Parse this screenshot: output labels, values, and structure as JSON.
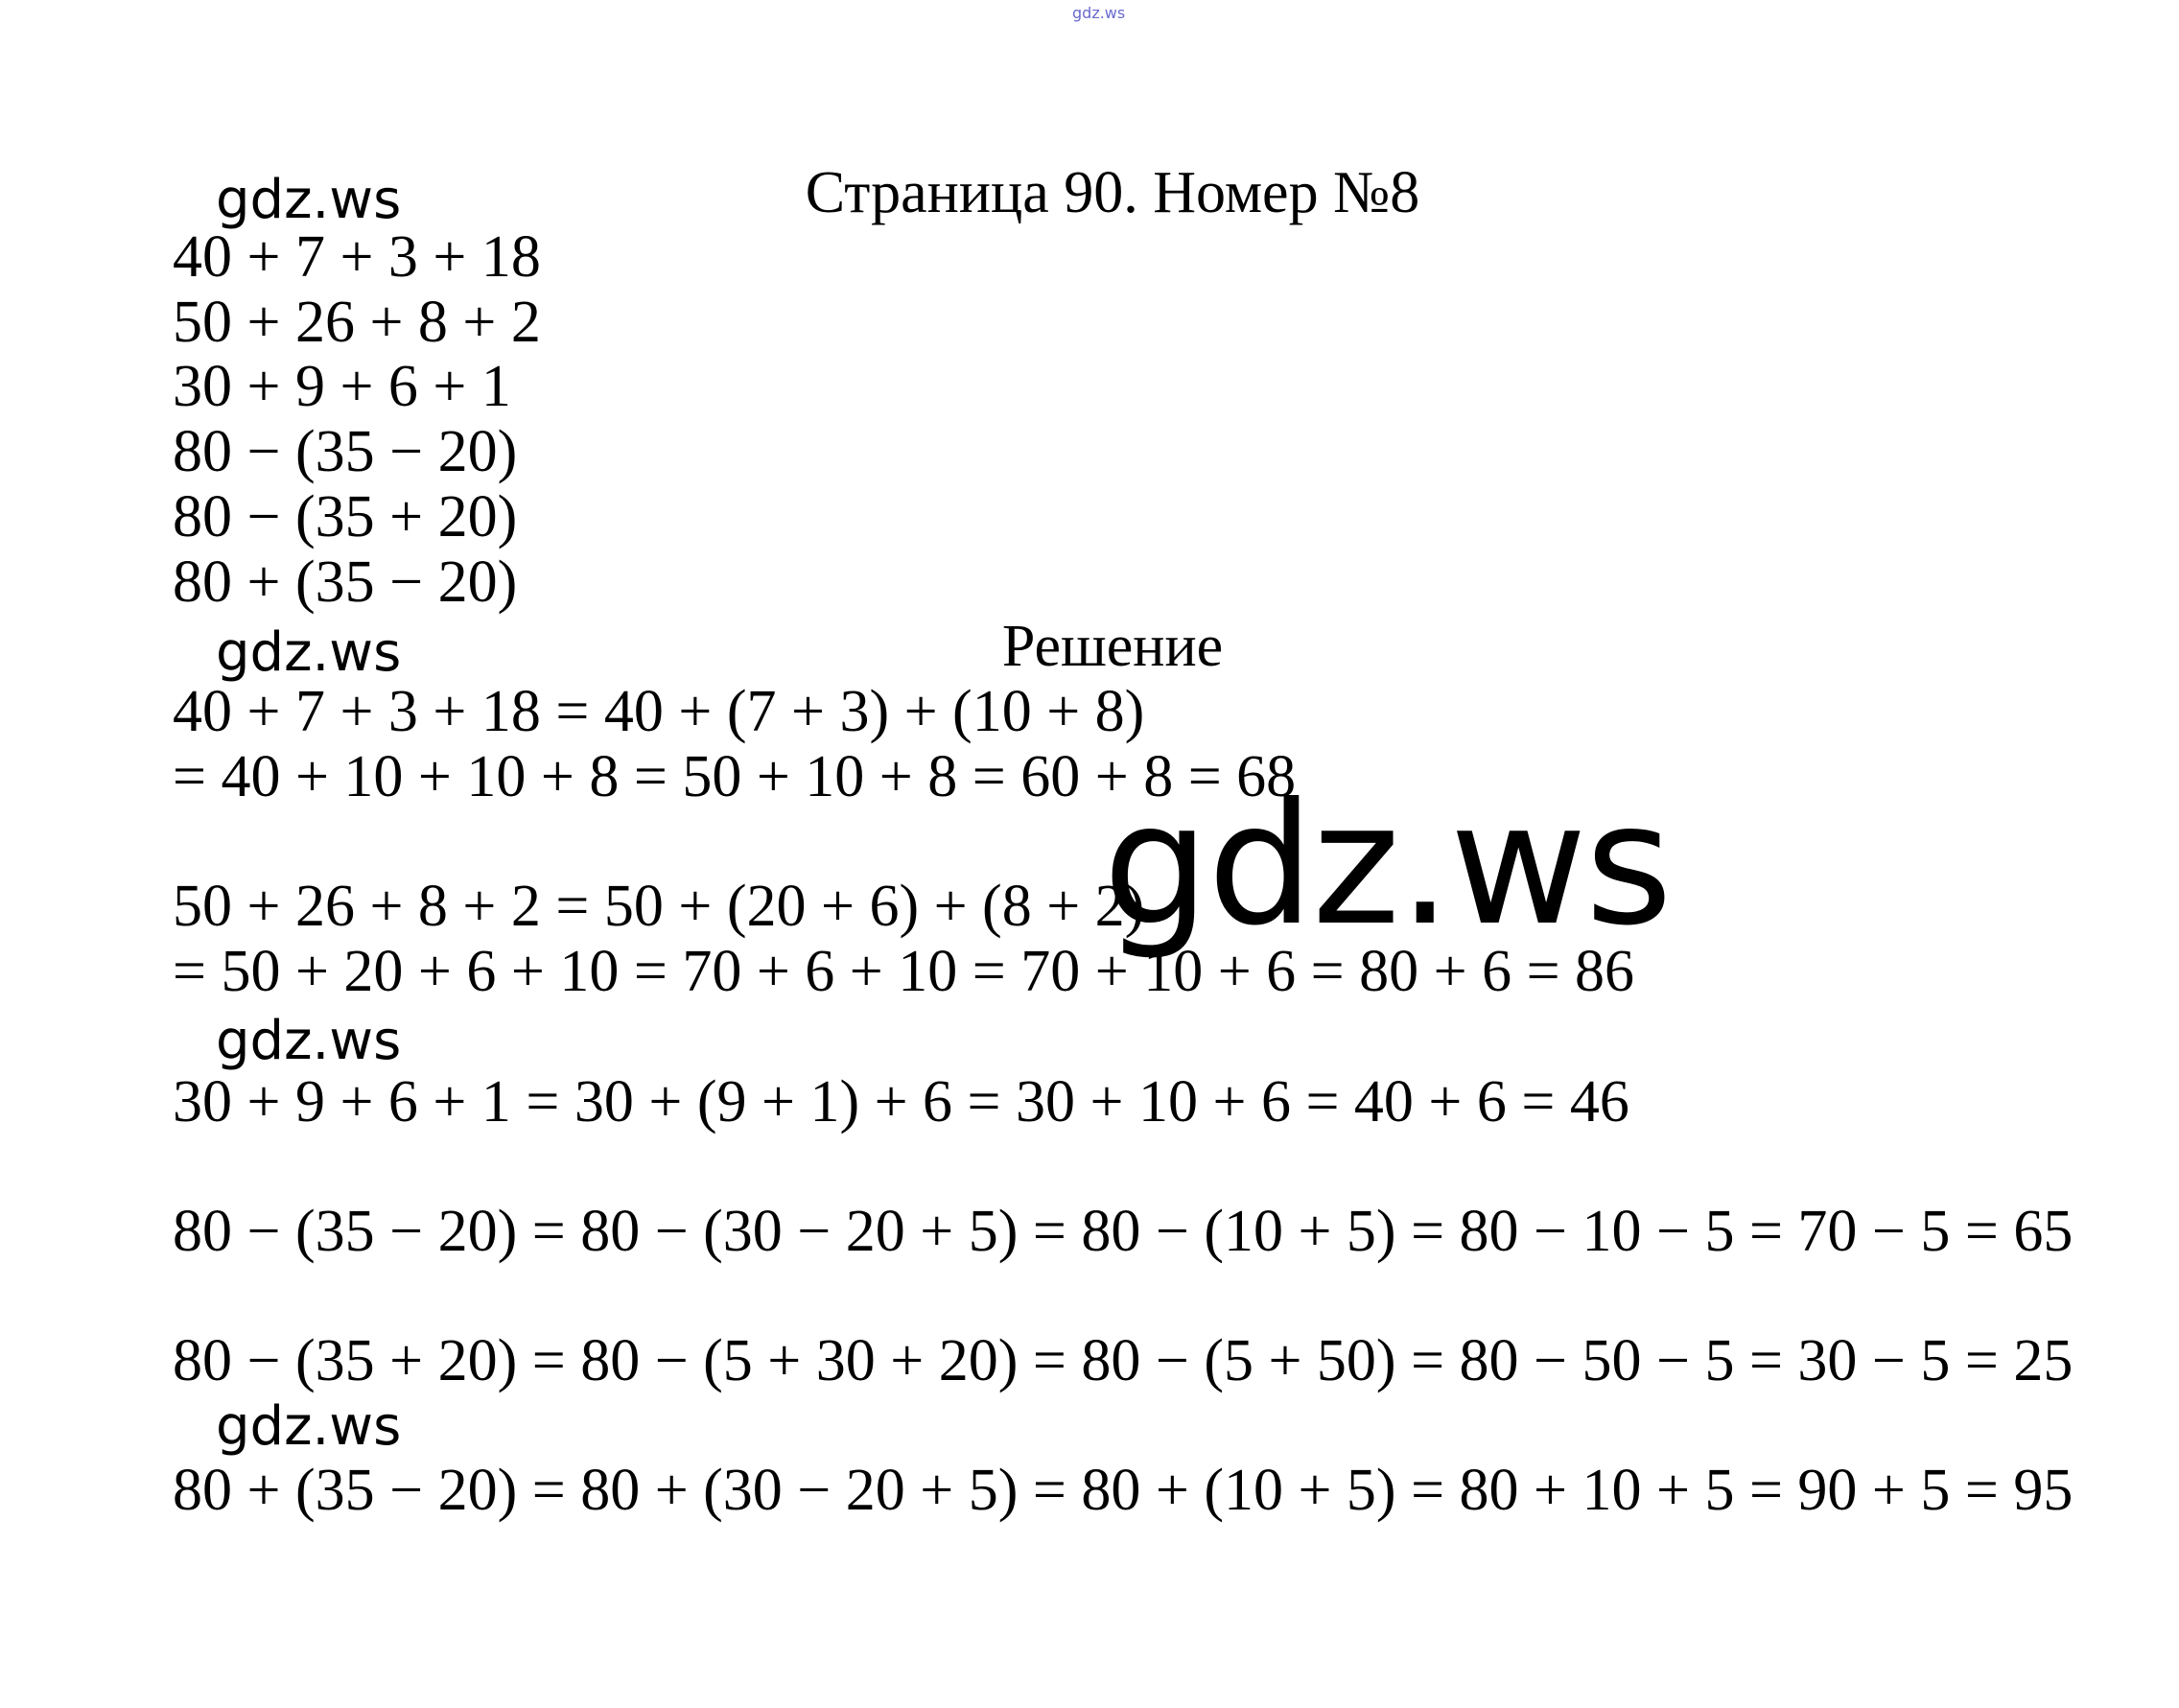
{
  "watermark_top": "gdz.ws",
  "watermark_text": "gdz.ws",
  "title": "Страница 90. Номер №8",
  "task_lines": [
    "40 + 7 + 3 + 18",
    "50 + 26 + 8 + 2",
    "30 + 9 + 6 + 1",
    "80 − (35 − 20)",
    "80 − (35 + 20)",
    "80 + (35 − 20)"
  ],
  "solution_heading": "Решение",
  "solution_lines": [
    "40 + 7 + 3 + 18 = 40 + (7 + 3) + (10 + 8)",
    "= 40 + 10 + 10 + 8 = 50 + 10 + 8 = 60 + 8 = 68",
    "50 + 26 + 8 + 2 = 50 + (20 + 6) + (8 + 2)",
    "= 50 + 20 + 6 + 10 = 70 + 6 + 10 = 70 + 10 + 6 = 80 + 6 = 86",
    "30 + 9 + 6 + 1 = 30 + (9 + 1) + 6 = 30 + 10 + 6 = 40 + 6 = 46",
    "80 − (35 − 20) = 80 − (30 − 20 + 5) = 80 − (10 + 5) = 80 − 10 − 5 = 70 − 5 = 65",
    "80 − (35 + 20) = 80 − (5 + 30 + 20) = 80 − (5 + 50) = 80 − 50 − 5 = 30 − 5 = 25",
    "80 + (35 − 20) = 80 + (30 − 20 + 5) = 80 + (10 + 5) = 80 + 10 + 5 = 90 + 5 = 95"
  ]
}
